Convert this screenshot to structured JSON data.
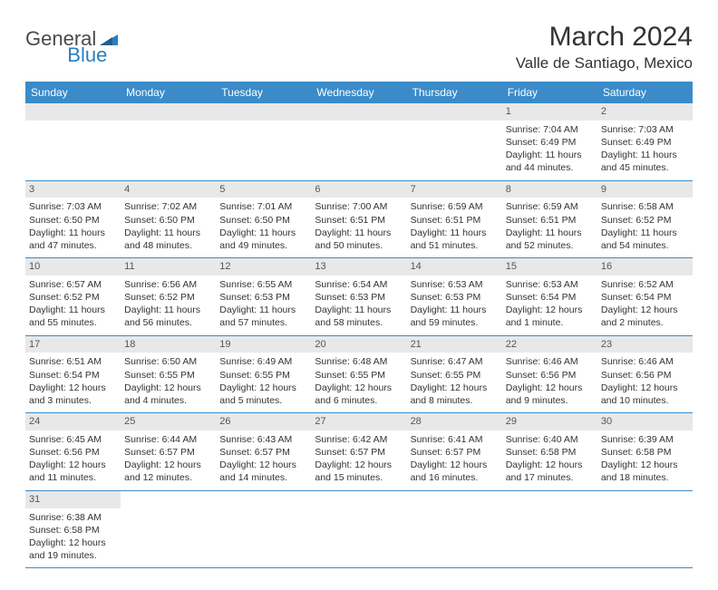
{
  "logo": {
    "text1": "General",
    "text2": "Blue"
  },
  "header": {
    "month_year": "March 2024",
    "location": "Valle de Santiago, Mexico"
  },
  "colors": {
    "header_bg": "#3b8bc9",
    "header_text": "#ffffff",
    "daynum_bg": "#e8e8e8",
    "row_border": "#3b8bc9",
    "body_text": "#333333",
    "logo_gray": "#4a4a4a",
    "logo_blue": "#2a7fbf"
  },
  "fonts": {
    "title_size_pt": 22,
    "location_size_pt": 13,
    "dow_size_pt": 9,
    "cell_size_pt": 8
  },
  "dow": [
    "Sunday",
    "Monday",
    "Tuesday",
    "Wednesday",
    "Thursday",
    "Friday",
    "Saturday"
  ],
  "weeks": [
    [
      null,
      null,
      null,
      null,
      null,
      {
        "n": "1",
        "sr": "Sunrise: 7:04 AM",
        "ss": "Sunset: 6:49 PM",
        "d1": "Daylight: 11 hours",
        "d2": "and 44 minutes."
      },
      {
        "n": "2",
        "sr": "Sunrise: 7:03 AM",
        "ss": "Sunset: 6:49 PM",
        "d1": "Daylight: 11 hours",
        "d2": "and 45 minutes."
      }
    ],
    [
      {
        "n": "3",
        "sr": "Sunrise: 7:03 AM",
        "ss": "Sunset: 6:50 PM",
        "d1": "Daylight: 11 hours",
        "d2": "and 47 minutes."
      },
      {
        "n": "4",
        "sr": "Sunrise: 7:02 AM",
        "ss": "Sunset: 6:50 PM",
        "d1": "Daylight: 11 hours",
        "d2": "and 48 minutes."
      },
      {
        "n": "5",
        "sr": "Sunrise: 7:01 AM",
        "ss": "Sunset: 6:50 PM",
        "d1": "Daylight: 11 hours",
        "d2": "and 49 minutes."
      },
      {
        "n": "6",
        "sr": "Sunrise: 7:00 AM",
        "ss": "Sunset: 6:51 PM",
        "d1": "Daylight: 11 hours",
        "d2": "and 50 minutes."
      },
      {
        "n": "7",
        "sr": "Sunrise: 6:59 AM",
        "ss": "Sunset: 6:51 PM",
        "d1": "Daylight: 11 hours",
        "d2": "and 51 minutes."
      },
      {
        "n": "8",
        "sr": "Sunrise: 6:59 AM",
        "ss": "Sunset: 6:51 PM",
        "d1": "Daylight: 11 hours",
        "d2": "and 52 minutes."
      },
      {
        "n": "9",
        "sr": "Sunrise: 6:58 AM",
        "ss": "Sunset: 6:52 PM",
        "d1": "Daylight: 11 hours",
        "d2": "and 54 minutes."
      }
    ],
    [
      {
        "n": "10",
        "sr": "Sunrise: 6:57 AM",
        "ss": "Sunset: 6:52 PM",
        "d1": "Daylight: 11 hours",
        "d2": "and 55 minutes."
      },
      {
        "n": "11",
        "sr": "Sunrise: 6:56 AM",
        "ss": "Sunset: 6:52 PM",
        "d1": "Daylight: 11 hours",
        "d2": "and 56 minutes."
      },
      {
        "n": "12",
        "sr": "Sunrise: 6:55 AM",
        "ss": "Sunset: 6:53 PM",
        "d1": "Daylight: 11 hours",
        "d2": "and 57 minutes."
      },
      {
        "n": "13",
        "sr": "Sunrise: 6:54 AM",
        "ss": "Sunset: 6:53 PM",
        "d1": "Daylight: 11 hours",
        "d2": "and 58 minutes."
      },
      {
        "n": "14",
        "sr": "Sunrise: 6:53 AM",
        "ss": "Sunset: 6:53 PM",
        "d1": "Daylight: 11 hours",
        "d2": "and 59 minutes."
      },
      {
        "n": "15",
        "sr": "Sunrise: 6:53 AM",
        "ss": "Sunset: 6:54 PM",
        "d1": "Daylight: 12 hours",
        "d2": "and 1 minute."
      },
      {
        "n": "16",
        "sr": "Sunrise: 6:52 AM",
        "ss": "Sunset: 6:54 PM",
        "d1": "Daylight: 12 hours",
        "d2": "and 2 minutes."
      }
    ],
    [
      {
        "n": "17",
        "sr": "Sunrise: 6:51 AM",
        "ss": "Sunset: 6:54 PM",
        "d1": "Daylight: 12 hours",
        "d2": "and 3 minutes."
      },
      {
        "n": "18",
        "sr": "Sunrise: 6:50 AM",
        "ss": "Sunset: 6:55 PM",
        "d1": "Daylight: 12 hours",
        "d2": "and 4 minutes."
      },
      {
        "n": "19",
        "sr": "Sunrise: 6:49 AM",
        "ss": "Sunset: 6:55 PM",
        "d1": "Daylight: 12 hours",
        "d2": "and 5 minutes."
      },
      {
        "n": "20",
        "sr": "Sunrise: 6:48 AM",
        "ss": "Sunset: 6:55 PM",
        "d1": "Daylight: 12 hours",
        "d2": "and 6 minutes."
      },
      {
        "n": "21",
        "sr": "Sunrise: 6:47 AM",
        "ss": "Sunset: 6:55 PM",
        "d1": "Daylight: 12 hours",
        "d2": "and 8 minutes."
      },
      {
        "n": "22",
        "sr": "Sunrise: 6:46 AM",
        "ss": "Sunset: 6:56 PM",
        "d1": "Daylight: 12 hours",
        "d2": "and 9 minutes."
      },
      {
        "n": "23",
        "sr": "Sunrise: 6:46 AM",
        "ss": "Sunset: 6:56 PM",
        "d1": "Daylight: 12 hours",
        "d2": "and 10 minutes."
      }
    ],
    [
      {
        "n": "24",
        "sr": "Sunrise: 6:45 AM",
        "ss": "Sunset: 6:56 PM",
        "d1": "Daylight: 12 hours",
        "d2": "and 11 minutes."
      },
      {
        "n": "25",
        "sr": "Sunrise: 6:44 AM",
        "ss": "Sunset: 6:57 PM",
        "d1": "Daylight: 12 hours",
        "d2": "and 12 minutes."
      },
      {
        "n": "26",
        "sr": "Sunrise: 6:43 AM",
        "ss": "Sunset: 6:57 PM",
        "d1": "Daylight: 12 hours",
        "d2": "and 14 minutes."
      },
      {
        "n": "27",
        "sr": "Sunrise: 6:42 AM",
        "ss": "Sunset: 6:57 PM",
        "d1": "Daylight: 12 hours",
        "d2": "and 15 minutes."
      },
      {
        "n": "28",
        "sr": "Sunrise: 6:41 AM",
        "ss": "Sunset: 6:57 PM",
        "d1": "Daylight: 12 hours",
        "d2": "and 16 minutes."
      },
      {
        "n": "29",
        "sr": "Sunrise: 6:40 AM",
        "ss": "Sunset: 6:58 PM",
        "d1": "Daylight: 12 hours",
        "d2": "and 17 minutes."
      },
      {
        "n": "30",
        "sr": "Sunrise: 6:39 AM",
        "ss": "Sunset: 6:58 PM",
        "d1": "Daylight: 12 hours",
        "d2": "and 18 minutes."
      }
    ],
    [
      {
        "n": "31",
        "sr": "Sunrise: 6:38 AM",
        "ss": "Sunset: 6:58 PM",
        "d1": "Daylight: 12 hours",
        "d2": "and 19 minutes."
      },
      null,
      null,
      null,
      null,
      null,
      null
    ]
  ]
}
